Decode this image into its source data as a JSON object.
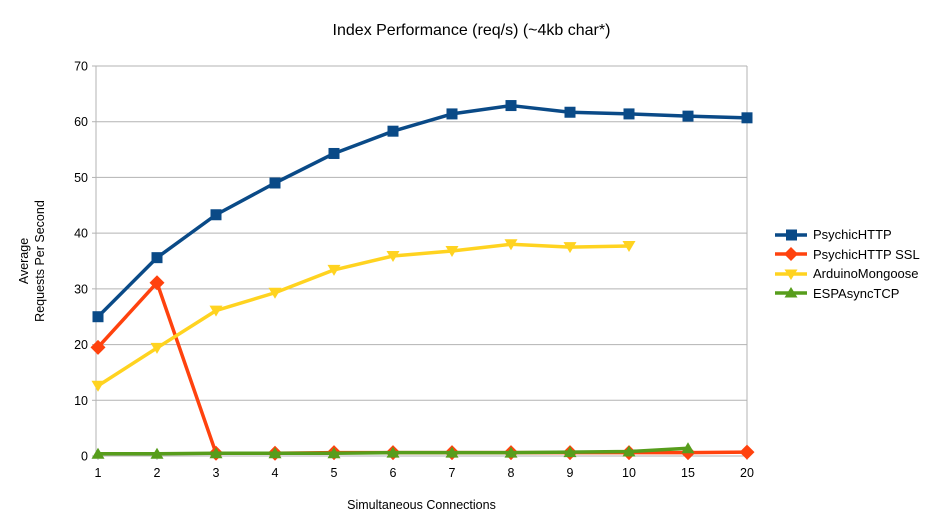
{
  "chart_data": {
    "type": "line",
    "title": "Index Performance (req/s) (~4kb char*)",
    "xlabel": "Simultaneous Connections",
    "ylabel_lines": [
      "Average",
      "Requests Per Second"
    ],
    "categories": [
      "1",
      "2",
      "3",
      "4",
      "5",
      "6",
      "7",
      "8",
      "9",
      "10",
      "15",
      "20"
    ],
    "yticks": [
      0,
      10,
      20,
      30,
      40,
      50,
      60,
      70
    ],
    "ylim": [
      0,
      70
    ],
    "grid": "horizontal",
    "grid_color": "#b3b3b3",
    "text_color": "#000000",
    "background_color": "#ffffff",
    "legend_position": "right",
    "series": [
      {
        "name": "PsychicHTTP",
        "color": "#0a4a87",
        "marker": "square",
        "values": [
          25.0,
          35.6,
          43.3,
          49.0,
          54.3,
          58.3,
          61.4,
          62.9,
          61.7,
          61.4,
          61.0,
          60.7
        ]
      },
      {
        "name": "PsychicHTTP SSL",
        "color": "#ff420e",
        "marker": "diamond",
        "values": [
          19.5,
          31.1,
          0.5,
          0.5,
          0.6,
          0.6,
          0.6,
          0.6,
          0.6,
          0.6,
          0.6,
          0.7
        ]
      },
      {
        "name": "ArduinoMongoose",
        "color": "#ffd320",
        "marker": "triangle-down",
        "values": [
          12.6,
          19.4,
          26.1,
          29.3,
          33.4,
          35.9,
          36.8,
          38.0,
          37.5,
          37.7,
          null,
          null
        ]
      },
      {
        "name": "ESPAsyncTCP",
        "color": "#579d1c",
        "marker": "triangle-up",
        "values": [
          0.4,
          0.4,
          0.5,
          0.5,
          0.5,
          0.6,
          0.6,
          0.6,
          0.7,
          0.8,
          1.4,
          null
        ]
      }
    ]
  }
}
